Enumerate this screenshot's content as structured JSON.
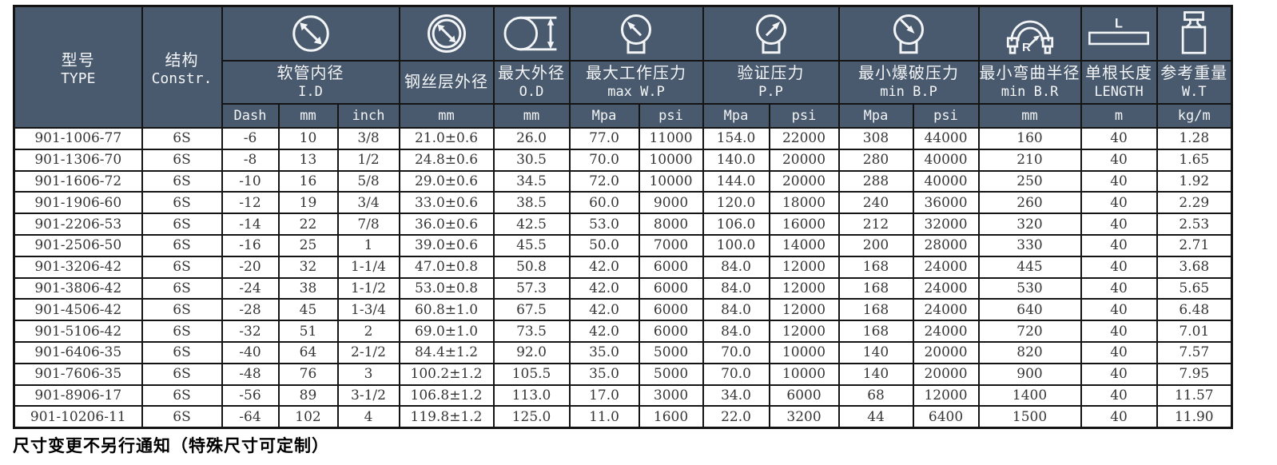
{
  "colors": {
    "page_bg": "#ffffff",
    "header_bg": "#4a5a6e",
    "header_text": "#f2f4f6",
    "border": "#141414",
    "data_text": "#363636"
  },
  "header": {
    "type": {
      "zh": "型号",
      "en": "TYPE"
    },
    "constr": {
      "zh": "结构",
      "en": "Constr."
    },
    "id": {
      "zh": "软管内径",
      "en": "I.D"
    },
    "wire_od": {
      "zh": "钢丝层外径"
    },
    "od": {
      "zh": "最大外径",
      "en": "O.D"
    },
    "wp": {
      "zh": "最大工作压力",
      "en": "max W.P"
    },
    "pp": {
      "zh": "验证压力",
      "en": "P.P"
    },
    "bp": {
      "zh": "最小爆破压力",
      "en": "min B.P"
    },
    "br": {
      "zh": "最小弯曲半径",
      "en": "min B.R"
    },
    "length": {
      "zh": "单根长度",
      "en": "LENGTH"
    },
    "wt": {
      "zh": "参考重量",
      "en": "W.T"
    }
  },
  "units": {
    "dash": "Dash",
    "id_mm": "mm",
    "id_inch": "inch",
    "wire_mm": "mm",
    "od_mm": "mm",
    "wp_mpa": "Mpa",
    "wp_psi": "psi",
    "pp_mpa": "Mpa",
    "pp_psi": "psi",
    "bp_mpa": "Mpa",
    "bp_psi": "psi",
    "br_mm": "mm",
    "len_m": "m",
    "wt_kgm": "kg/m"
  },
  "icons": {
    "id": "inner-diameter-icon",
    "wire_od": "wire-layer-od-icon",
    "od": "max-od-icon",
    "wp": "work-pressure-gauge-icon",
    "pp": "proof-pressure-gauge-icon",
    "bp": "burst-pressure-gauge-icon",
    "br": "bend-radius-icon",
    "length": "length-icon",
    "wt": "weight-icon"
  },
  "column_keys": [
    "type",
    "constr",
    "dash",
    "id-mm",
    "id-inch",
    "wire-od-mm",
    "max-od-mm",
    "wp-mpa",
    "wp-psi",
    "pp-mpa",
    "pp-psi",
    "bp-mpa",
    "bp-psi",
    "br-mm",
    "length-m",
    "wt-kgm"
  ],
  "rows": [
    [
      "901-1006-77",
      "6S",
      "-6",
      "10",
      "3/8",
      "21.0±0.6",
      "26.0",
      "77.0",
      "11000",
      "154.0",
      "22000",
      "308",
      "44000",
      "160",
      "40",
      "1.28"
    ],
    [
      "901-1306-70",
      "6S",
      "-8",
      "13",
      "1/2",
      "24.8±0.6",
      "30.5",
      "70.0",
      "10000",
      "140.0",
      "20000",
      "280",
      "40000",
      "210",
      "40",
      "1.65"
    ],
    [
      "901-1606-72",
      "6S",
      "-10",
      "16",
      "5/8",
      "29.0±0.6",
      "34.5",
      "72.0",
      "10000",
      "144.0",
      "20000",
      "288",
      "40000",
      "250",
      "40",
      "1.92"
    ],
    [
      "901-1906-60",
      "6S",
      "-12",
      "19",
      "3/4",
      "33.0±0.6",
      "38.5",
      "60.0",
      "9000",
      "120.0",
      "18000",
      "240",
      "36000",
      "260",
      "40",
      "2.29"
    ],
    [
      "901-2206-53",
      "6S",
      "-14",
      "22",
      "7/8",
      "36.0±0.6",
      "42.5",
      "53.0",
      "8000",
      "106.0",
      "16000",
      "212",
      "32000",
      "320",
      "40",
      "2.53"
    ],
    [
      "901-2506-50",
      "6S",
      "-16",
      "25",
      "1",
      "39.0±0.6",
      "45.5",
      "50.0",
      "7000",
      "100.0",
      "14000",
      "200",
      "28000",
      "330",
      "40",
      "2.71"
    ],
    [
      "901-3206-42",
      "6S",
      "-20",
      "32",
      "1-1/4",
      "47.0±0.8",
      "50.8",
      "42.0",
      "6000",
      "84.0",
      "12000",
      "168",
      "24000",
      "445",
      "40",
      "3.68"
    ],
    [
      "901-3806-42",
      "6S",
      "-24",
      "38",
      "1-1/2",
      "53.0±0.8",
      "57.3",
      "42.0",
      "6000",
      "84.0",
      "12000",
      "168",
      "24000",
      "530",
      "40",
      "5.65"
    ],
    [
      "901-4506-42",
      "6S",
      "-28",
      "45",
      "1-3/4",
      "60.8±1.0",
      "67.5",
      "42.0",
      "6000",
      "84.0",
      "12000",
      "168",
      "24000",
      "640",
      "40",
      "6.48"
    ],
    [
      "901-5106-42",
      "6S",
      "-32",
      "51",
      "2",
      "69.0±1.0",
      "73.5",
      "42.0",
      "6000",
      "84.0",
      "12000",
      "168",
      "24000",
      "720",
      "40",
      "7.01"
    ],
    [
      "901-6406-35",
      "6S",
      "-40",
      "64",
      "2-1/2",
      "84.4±1.2",
      "92.0",
      "35.0",
      "5000",
      "70.0",
      "10000",
      "140",
      "20000",
      "820",
      "40",
      "7.57"
    ],
    [
      "901-7606-35",
      "6S",
      "-48",
      "76",
      "3",
      "100.2±1.2",
      "105.5",
      "35.0",
      "5000",
      "70.0",
      "10000",
      "140",
      "20000",
      "900",
      "40",
      "7.95"
    ],
    [
      "901-8906-17",
      "6S",
      "-56",
      "89",
      "3-1/2",
      "106.8±1.2",
      "113.0",
      "17.0",
      "3000",
      "34.0",
      "6000",
      "68",
      "12000",
      "1400",
      "40",
      "11.57"
    ],
    [
      "901-10206-11",
      "6S",
      "-64",
      "102",
      "4",
      "119.8±1.2",
      "125.0",
      "11.0",
      "1600",
      "22.0",
      "3200",
      "44",
      "6400",
      "1500",
      "40",
      "11.90"
    ]
  ],
  "footer": {
    "note": "尺寸变更不另行通知（特殊尺寸可定制）"
  }
}
